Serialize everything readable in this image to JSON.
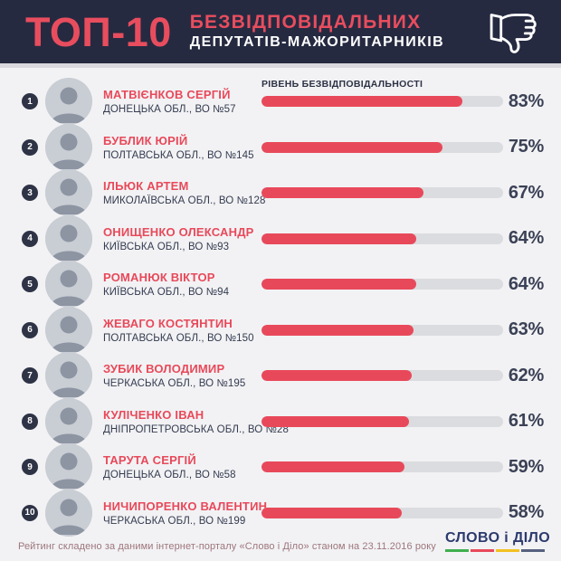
{
  "header": {
    "top_label": "ТОП-10",
    "title_line1": "БЕЗВІДПОВІДАЛЬНИХ",
    "title_line2": "ДЕПУТАТІВ-МАЖОРИТАРНИКІВ",
    "icon": "thumbs-down-icon"
  },
  "list_header": "РІВЕНЬ БЕЗВІДПОВІДАЛЬНОСТІ",
  "rows": [
    {
      "rank": "1",
      "name": "МАТВІЄНКОВ СЕРГІЙ",
      "region": "ДОНЕЦЬКА ОБЛ., ВО №57",
      "percent": 83,
      "percent_label": "83%"
    },
    {
      "rank": "2",
      "name": "БУБЛИК ЮРІЙ",
      "region": "ПОЛТАВСЬКА ОБЛ., ВО №145",
      "percent": 75,
      "percent_label": "75%"
    },
    {
      "rank": "3",
      "name": "ІЛЬЮК АРТЕМ",
      "region": "МИКОЛАЇВСЬКА ОБЛ., ВО №128",
      "percent": 67,
      "percent_label": "67%"
    },
    {
      "rank": "4",
      "name": "ОНИЩЕНКО ОЛЕКСАНДР",
      "region": "КИЇВСЬКА ОБЛ., ВО №93",
      "percent": 64,
      "percent_label": "64%"
    },
    {
      "rank": "5",
      "name": "РОМАНЮК ВІКТОР",
      "region": "КИЇВСЬКА ОБЛ., ВО №94",
      "percent": 64,
      "percent_label": "64%"
    },
    {
      "rank": "6",
      "name": "ЖЕВАГО КОСТЯНТИН",
      "region": "ПОЛТАВСЬКА ОБЛ., ВО №150",
      "percent": 63,
      "percent_label": "63%"
    },
    {
      "rank": "7",
      "name": "ЗУБИК ВОЛОДИМИР",
      "region": "ЧЕРКАСЬКА ОБЛ., ВО №195",
      "percent": 62,
      "percent_label": "62%"
    },
    {
      "rank": "8",
      "name": "КУЛІЧЕНКО ІВАН",
      "region": "ДНІПРОПЕТРОВСЬКА ОБЛ., ВО №28",
      "percent": 61,
      "percent_label": "61%"
    },
    {
      "rank": "9",
      "name": "ТАРУТА СЕРГІЙ",
      "region": "ДОНЕЦЬКА ОБЛ., ВО №58",
      "percent": 59,
      "percent_label": "59%"
    },
    {
      "rank": "10",
      "name": "НИЧИПОРЕНКО ВАЛЕНТИН",
      "region": "ЧЕРКАСЬКА ОБЛ., ВО №199",
      "percent": 58,
      "percent_label": "58%"
    }
  ],
  "footer": {
    "note": "Рейтинг складено за даними інтернет-порталу «Слово і Діло» станом на 23.11.2016 року",
    "logo_text": "СЛОВО і ДІЛО",
    "logo_underline_colors": [
      "#3faf4e",
      "#e8495a",
      "#f2c11e",
      "#56617f"
    ]
  },
  "colors": {
    "header_bg": "#252a41",
    "accent_red": "#e8495a",
    "page_bg": "#f2f2f4",
    "bar_track": "#dbdcdf",
    "dark_text": "#3b4156",
    "badge_bg": "#2e3346"
  },
  "chart_data": {
    "type": "bar",
    "orientation": "horizontal",
    "title": "ТОП-10 БЕЗВІДПОВІДАЛЬНИХ ДЕПУТАТІВ-МАЖОРИТАРНИКІВ",
    "value_axis_label": "РІВЕНЬ БЕЗВІДПОВІДАЛЬНОСТІ",
    "categories": [
      "МАТВІЄНКОВ СЕРГІЙ",
      "БУБЛИК ЮРІЙ",
      "ІЛЬЮК АРТЕМ",
      "ОНИЩЕНКО ОЛЕКСАНДР",
      "РОМАНЮК ВІКТОР",
      "ЖЕВАГО КОСТЯНТИН",
      "ЗУБИК ВОЛОДИМИР",
      "КУЛІЧЕНКО ІВАН",
      "ТАРУТА СЕРГІЙ",
      "НИЧИПОРЕНКО ВАЛЕНТИН"
    ],
    "values": [
      83,
      75,
      67,
      64,
      64,
      63,
      62,
      61,
      59,
      58
    ],
    "value_suffix": "%",
    "xlim": [
      0,
      100
    ],
    "grid": false,
    "legend": false,
    "bar_color": "#e8495a",
    "source_note": "Рейтинг складено за даними інтернет-порталу «Слово і Діло» станом на 23.11.2016 року"
  }
}
